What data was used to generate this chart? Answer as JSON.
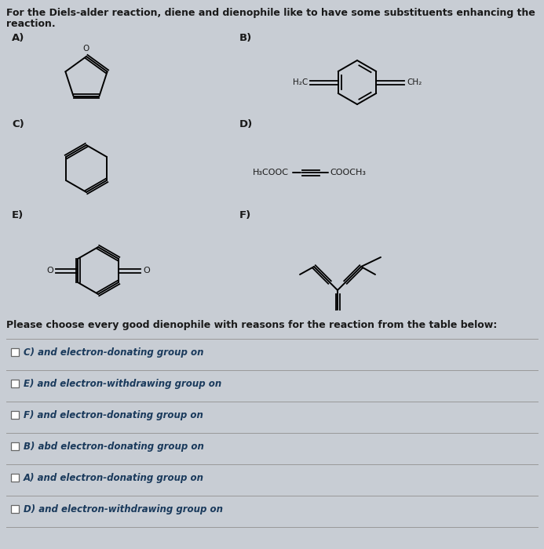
{
  "bg_color": "#c8cdd4",
  "text_color": "#1a1a1a",
  "title_line1": "For the Diels-alder reaction, diene and dienophile like to have some substituents enhancing the",
  "title_line2": "reaction.",
  "label_A": "A)",
  "label_B": "B)",
  "label_C": "C)",
  "label_D": "D)",
  "label_E": "E)",
  "label_F": "F)",
  "please_choose_text": "Please choose every good dienophile with reasons for the reaction from the table below:",
  "checkbox_options": [
    "C) and electron-donating group on",
    "E) and electron-withdrawing group on",
    "F) and electron-donating group on",
    "B) abd electron-donating group on",
    "A) and electron-donating group on",
    "D) and electron-withdrawing group on"
  ],
  "checkbox_text_color": "#1a3a5c",
  "line_color": "#999999",
  "title_fontsize": 9.0,
  "label_fontsize": 9.5,
  "option_fontsize": 8.5,
  "please_fontsize": 9.0
}
